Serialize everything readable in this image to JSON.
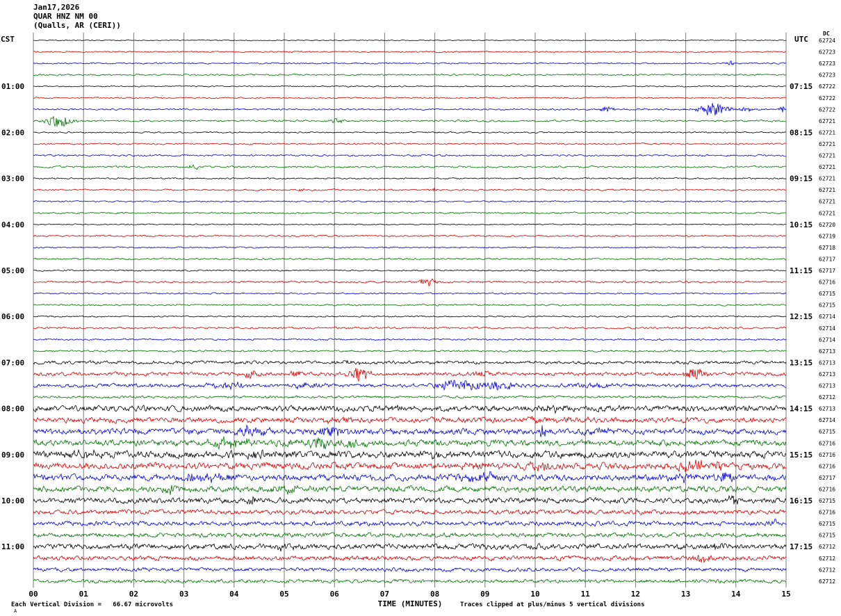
{
  "title": {
    "line1": "Jan17,2026",
    "line2": "QUAR HNZ NM 00",
    "line3": "(Qualls, AR (CERI))"
  },
  "header": {
    "left_tz": "CST",
    "right_tz": "UTC",
    "dc_label": "DC"
  },
  "x_axis": {
    "label": "TIME (MINUTES)",
    "ticks": [
      "00",
      "01",
      "02",
      "03",
      "04",
      "05",
      "06",
      "07",
      "08",
      "09",
      "10",
      "11",
      "12",
      "13",
      "14",
      "15"
    ]
  },
  "footer": {
    "scale_note": "Each Vertical Division =   66.67 microvolts",
    "clip_note": "Traces clipped at plus/minus 5 vertical divisions",
    "corner_mark": "A"
  },
  "palette": {
    "black": "#000000",
    "red": "#d40000",
    "blue": "#0000cc",
    "green": "#007300",
    "grid": "#7a7a7a"
  },
  "chart_data": {
    "type": "line",
    "subtype": "helicorder-seismogram",
    "station": "QUAR HNZ NM 00",
    "location": "(Qualls, AR (CERI))",
    "date": "Jan17,2026",
    "xlabel": "TIME (MINUTES)",
    "x_range_minutes": [
      0,
      15
    ],
    "minutes_per_line": 15,
    "left_timezone": "CST",
    "right_timezone": "UTC",
    "row_color_cycle": [
      "black",
      "red",
      "blue",
      "green"
    ],
    "clip_divisions": 5,
    "microvolts_per_division": "66.67",
    "rows": [
      {
        "left": "",
        "right": "",
        "color": "black",
        "dc": "62724",
        "noise": 0.5
      },
      {
        "left": "",
        "right": "",
        "color": "red",
        "dc": "62723",
        "noise": 0.7
      },
      {
        "left": "",
        "right": "",
        "color": "blue",
        "dc": "62723",
        "noise": 0.7,
        "events": [
          {
            "t": 13.9,
            "d": 0.08,
            "a": 4
          }
        ]
      },
      {
        "left": "",
        "right": "",
        "color": "green",
        "dc": "62723",
        "noise": 0.8
      },
      {
        "left": "01:00",
        "right": "07:15",
        "color": "black",
        "dc": "62722",
        "noise": 0.6
      },
      {
        "left": "",
        "right": "",
        "color": "red",
        "dc": "62722",
        "noise": 0.7
      },
      {
        "left": "",
        "right": "",
        "color": "blue",
        "dc": "62722",
        "noise": 0.8,
        "events": [
          {
            "t": 11.45,
            "d": 0.15,
            "a": 3.5
          },
          {
            "t": 13.55,
            "d": 0.3,
            "a": 9
          },
          {
            "t": 14.2,
            "d": 0.12,
            "a": 3
          },
          {
            "t": 14.92,
            "d": 0.06,
            "a": 6
          }
        ]
      },
      {
        "left": "",
        "right": "",
        "color": "green",
        "dc": "62721",
        "noise": 0.9,
        "events": [
          {
            "t": 0.5,
            "d": 0.25,
            "a": 10
          },
          {
            "t": 6.05,
            "d": 0.12,
            "a": 4
          }
        ]
      },
      {
        "left": "02:00",
        "right": "08:15",
        "color": "black",
        "dc": "62721",
        "noise": 0.7
      },
      {
        "left": "",
        "right": "",
        "color": "red",
        "dc": "62721",
        "noise": 0.8
      },
      {
        "left": "",
        "right": "",
        "color": "blue",
        "dc": "62721",
        "noise": 0.8
      },
      {
        "left": "",
        "right": "",
        "color": "green",
        "dc": "62721",
        "noise": 0.9,
        "events": [
          {
            "t": 3.2,
            "d": 0.15,
            "a": 3
          }
        ]
      },
      {
        "left": "03:00",
        "right": "09:15",
        "color": "black",
        "dc": "62721",
        "noise": 0.7
      },
      {
        "left": "",
        "right": "",
        "color": "red",
        "dc": "62721",
        "noise": 0.8,
        "events": [
          {
            "t": 5.35,
            "d": 0.08,
            "a": 2.5
          },
          {
            "t": 8.0,
            "d": 0.08,
            "a": 2.5
          }
        ]
      },
      {
        "left": "",
        "right": "",
        "color": "blue",
        "dc": "62721",
        "noise": 0.7
      },
      {
        "left": "",
        "right": "",
        "color": "green",
        "dc": "62721",
        "noise": 0.8
      },
      {
        "left": "04:00",
        "right": "10:15",
        "color": "black",
        "dc": "62720",
        "noise": 0.6
      },
      {
        "left": "",
        "right": "",
        "color": "red",
        "dc": "62719",
        "noise": 0.8
      },
      {
        "left": "",
        "right": "",
        "color": "blue",
        "dc": "62718",
        "noise": 0.7
      },
      {
        "left": "",
        "right": "",
        "color": "green",
        "dc": "62717",
        "noise": 0.8
      },
      {
        "left": "05:00",
        "right": "11:15",
        "color": "black",
        "dc": "62717",
        "noise": 0.7
      },
      {
        "left": "",
        "right": "",
        "color": "red",
        "dc": "62716",
        "noise": 0.9,
        "events": [
          {
            "t": 7.85,
            "d": 0.15,
            "a": 6
          }
        ]
      },
      {
        "left": "",
        "right": "",
        "color": "blue",
        "dc": "62715",
        "noise": 0.7
      },
      {
        "left": "",
        "right": "",
        "color": "green",
        "dc": "62715",
        "noise": 0.8
      },
      {
        "left": "06:00",
        "right": "12:15",
        "color": "black",
        "dc": "62714",
        "noise": 0.7
      },
      {
        "left": "",
        "right": "",
        "color": "red",
        "dc": "62714",
        "noise": 0.9
      },
      {
        "left": "",
        "right": "",
        "color": "blue",
        "dc": "62714",
        "noise": 0.8
      },
      {
        "left": "",
        "right": "",
        "color": "green",
        "dc": "62713",
        "noise": 0.9
      },
      {
        "left": "07:00",
        "right": "13:15",
        "color": "black",
        "dc": "62713",
        "noise": 1.6,
        "events": [
          {
            "t": 6.4,
            "d": 0.25,
            "a": 2
          }
        ]
      },
      {
        "left": "",
        "right": "",
        "color": "red",
        "dc": "62713",
        "noise": 1.8,
        "events": [
          {
            "t": 4.3,
            "d": 0.2,
            "a": 4
          },
          {
            "t": 5.2,
            "d": 0.15,
            "a": 3
          },
          {
            "t": 6.5,
            "d": 0.2,
            "a": 11
          },
          {
            "t": 9.0,
            "d": 0.3,
            "a": 3
          },
          {
            "t": 13.2,
            "d": 0.2,
            "a": 9
          }
        ]
      },
      {
        "left": "",
        "right": "",
        "color": "blue",
        "dc": "62713",
        "noise": 1.8,
        "events": [
          {
            "t": 3.9,
            "d": 0.35,
            "a": 4
          },
          {
            "t": 5.4,
            "d": 0.5,
            "a": 3
          },
          {
            "t": 8.6,
            "d": 0.7,
            "a": 6
          },
          {
            "t": 9.3,
            "d": 0.25,
            "a": 5
          },
          {
            "t": 11.2,
            "d": 0.5,
            "a": 3
          }
        ]
      },
      {
        "left": "",
        "right": "",
        "color": "green",
        "dc": "62712",
        "noise": 1.2
      },
      {
        "left": "08:00",
        "right": "14:15",
        "color": "black",
        "dc": "62713",
        "noise": 2.8,
        "events": [
          {
            "t": 7.0,
            "d": 0.3,
            "a": 3
          },
          {
            "t": 10.3,
            "d": 0.3,
            "a": 3
          }
        ]
      },
      {
        "left": "",
        "right": "",
        "color": "red",
        "dc": "62714",
        "noise": 2.6,
        "events": [
          {
            "t": 6.0,
            "d": 0.3,
            "a": 3
          },
          {
            "t": 9.9,
            "d": 0.25,
            "a": 4
          },
          {
            "t": 10.6,
            "d": 0.2,
            "a": 3
          }
        ]
      },
      {
        "left": "",
        "right": "",
        "color": "blue",
        "dc": "62715",
        "noise": 2.8,
        "events": [
          {
            "t": 4.3,
            "d": 0.35,
            "a": 6
          },
          {
            "t": 5.9,
            "d": 0.35,
            "a": 6
          },
          {
            "t": 10.15,
            "d": 0.08,
            "a": 8
          },
          {
            "t": 11.3,
            "d": 0.3,
            "a": 4
          }
        ]
      },
      {
        "left": "",
        "right": "",
        "color": "green",
        "dc": "62716",
        "noise": 3.0,
        "events": [
          {
            "t": 3.9,
            "d": 0.45,
            "a": 6
          },
          {
            "t": 5.6,
            "d": 0.5,
            "a": 6
          },
          {
            "t": 6.4,
            "d": 0.25,
            "a": 5
          }
        ]
      },
      {
        "left": "09:00",
        "right": "15:15",
        "color": "black",
        "dc": "62716",
        "noise": 3.4,
        "events": [
          {
            "t": 1.0,
            "d": 0.5,
            "a": 4
          },
          {
            "t": 4.5,
            "d": 0.5,
            "a": 4
          },
          {
            "t": 7.8,
            "d": 0.3,
            "a": 3
          }
        ]
      },
      {
        "left": "",
        "right": "",
        "color": "red",
        "dc": "62716",
        "noise": 3.2,
        "events": [
          {
            "t": 8.9,
            "d": 0.3,
            "a": 5
          },
          {
            "t": 10.1,
            "d": 0.25,
            "a": 4
          },
          {
            "t": 13.1,
            "d": 0.35,
            "a": 6
          },
          {
            "t": 13.7,
            "d": 0.15,
            "a": 5
          }
        ]
      },
      {
        "left": "",
        "right": "",
        "color": "blue",
        "dc": "62717",
        "noise": 3.0,
        "events": [
          {
            "t": 3.4,
            "d": 0.5,
            "a": 5
          },
          {
            "t": 8.9,
            "d": 0.45,
            "a": 5
          },
          {
            "t": 12.9,
            "d": 0.35,
            "a": 5
          },
          {
            "t": 13.8,
            "d": 0.15,
            "a": 7
          }
        ]
      },
      {
        "left": "",
        "right": "",
        "color": "green",
        "dc": "62716",
        "noise": 2.8,
        "events": [
          {
            "t": 2.75,
            "d": 0.15,
            "a": 7
          },
          {
            "t": 5.0,
            "d": 0.4,
            "a": 4
          }
        ]
      },
      {
        "left": "10:00",
        "right": "16:15",
        "color": "black",
        "dc": "62715",
        "noise": 2.6,
        "events": [
          {
            "t": 4.35,
            "d": 0.12,
            "a": 6
          },
          {
            "t": 13.95,
            "d": 0.1,
            "a": 8
          }
        ]
      },
      {
        "left": "",
        "right": "",
        "color": "red",
        "dc": "62716",
        "noise": 2.2
      },
      {
        "left": "",
        "right": "",
        "color": "blue",
        "dc": "62715",
        "noise": 2.2,
        "events": [
          {
            "t": 14.75,
            "d": 0.08,
            "a": 5
          }
        ]
      },
      {
        "left": "",
        "right": "",
        "color": "green",
        "dc": "62715",
        "noise": 2.2
      },
      {
        "left": "11:00",
        "right": "17:15",
        "color": "black",
        "dc": "62712",
        "noise": 2.6,
        "events": [
          {
            "t": 5.0,
            "d": 0.35,
            "a": 3
          },
          {
            "t": 13.6,
            "d": 0.25,
            "a": 3
          }
        ]
      },
      {
        "left": "",
        "right": "",
        "color": "red",
        "dc": "62712",
        "noise": 2.2,
        "events": [
          {
            "t": 13.35,
            "d": 0.18,
            "a": 7
          }
        ]
      },
      {
        "left": "",
        "right": "",
        "color": "blue",
        "dc": "62712",
        "noise": 1.8
      },
      {
        "left": "",
        "right": "",
        "color": "green",
        "dc": "62712",
        "noise": 1.8
      }
    ]
  }
}
